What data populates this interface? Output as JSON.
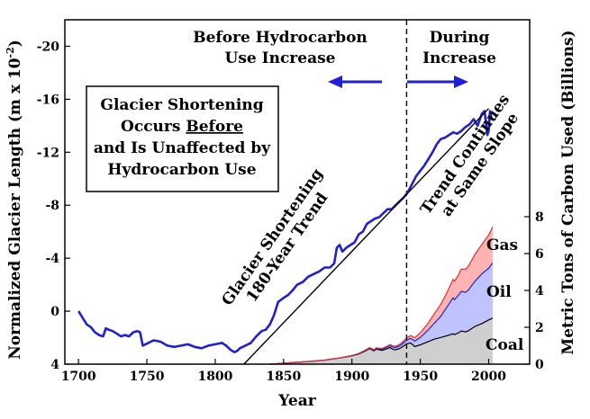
{
  "chart_data": {
    "type": "line",
    "xlabel": "Year",
    "ylabel": "Normalized Glacier Length (m x 10",
    "ylabel_sup": "-2",
    "ylabel_close": ")",
    "y2label": "Metric Tons of Carbon Used (Billions)",
    "xlim": [
      1690,
      2030
    ],
    "ylim": [
      4,
      -22
    ],
    "y2lim": [
      0,
      8
    ],
    "x_ticks": [
      1700,
      1750,
      1800,
      1850,
      1900,
      1950,
      2000
    ],
    "y_ticks": [
      4,
      0,
      -4,
      -8,
      -12,
      -16,
      -20
    ],
    "y2_ticks": [
      0,
      2,
      4,
      6,
      8
    ],
    "divider_year": 1940,
    "series": [
      {
        "name": "",
        "color": "#1f1fd6",
        "x": [
          1700,
          1703,
          1706,
          1709,
          1712,
          1715,
          1718,
          1720,
          1722,
          1725,
          1728,
          1731,
          1734,
          1737,
          1740,
          1743,
          1745,
          1747,
          1749,
          1751,
          1755,
          1760,
          1765,
          1770,
          1775,
          1780,
          1785,
          1790,
          1795,
          1800,
          1805,
          1808,
          1811,
          1814,
          1816,
          1818,
          1822,
          1826,
          1830,
          1834,
          1837,
          1840,
          1843,
          1846,
          1850,
          1853,
          1856,
          1860,
          1864,
          1868,
          1872,
          1876,
          1880,
          1884,
          1887,
          1889,
          1891,
          1893,
          1896,
          1899,
          1902,
          1905,
          1908,
          1911,
          1914,
          1917,
          1920,
          1923,
          1926,
          1929,
          1932,
          1935,
          1938,
          1941,
          1944,
          1947,
          1950,
          1953,
          1956,
          1959,
          1962,
          1965,
          1968,
          1971,
          1974,
          1977,
          1980,
          1983,
          1986,
          1989,
          1992,
          1995,
          1997,
          1998,
          1999,
          2000,
          2001,
          2002
        ],
        "y": [
          0.0,
          0.5,
          1.0,
          1.2,
          1.6,
          1.8,
          1.9,
          1.3,
          1.4,
          1.5,
          1.7,
          1.9,
          1.8,
          1.9,
          1.6,
          1.5,
          1.6,
          2.6,
          2.5,
          2.4,
          2.2,
          2.3,
          2.6,
          2.7,
          2.6,
          2.5,
          2.7,
          2.8,
          2.6,
          2.5,
          2.4,
          2.6,
          2.9,
          3.1,
          3.0,
          2.8,
          2.6,
          2.4,
          1.9,
          1.5,
          1.4,
          1.0,
          0.3,
          -0.7,
          -1.0,
          -1.2,
          -1.5,
          -2.0,
          -2.2,
          -2.6,
          -2.8,
          -3.0,
          -3.3,
          -3.3,
          -3.6,
          -4.8,
          -5.0,
          -4.5,
          -4.8,
          -5.0,
          -5.2,
          -5.8,
          -6.0,
          -6.6,
          -6.8,
          -7.0,
          -7.1,
          -7.4,
          -7.7,
          -7.7,
          -8.0,
          -8.3,
          -8.6,
          -9.0,
          -9.6,
          -10.2,
          -10.6,
          -11.0,
          -11.5,
          -12.0,
          -12.6,
          -13.0,
          -13.1,
          -13.3,
          -13.5,
          -13.4,
          -13.6,
          -13.9,
          -14.1,
          -14.5,
          -14.0,
          -14.9,
          -15.1,
          -14.3,
          -13.3,
          -13.6,
          -15.1,
          -14.6
        ]
      },
      {
        "name": "",
        "color": "#000000",
        "x": [
          1821,
          2000
        ],
        "y": [
          4.0,
          -15.3
        ]
      }
    ],
    "stacked_area_y2": {
      "x": [
        1840,
        1850,
        1860,
        1870,
        1880,
        1890,
        1900,
        1905,
        1910,
        1913,
        1916,
        1918,
        1920,
        1922,
        1925,
        1928,
        1930,
        1932,
        1935,
        1938,
        1940,
        1943,
        1946,
        1950,
        1955,
        1960,
        1965,
        1970,
        1974,
        1975,
        1978,
        1980,
        1983,
        1985,
        1990,
        1995,
        2000,
        2003
      ],
      "layers": [
        {
          "name": "Coal",
          "color": "#cfcfcf",
          "line": "#000000",
          "values": [
            0.0,
            0.05,
            0.1,
            0.15,
            0.22,
            0.32,
            0.45,
            0.55,
            0.72,
            0.85,
            0.72,
            0.82,
            0.78,
            0.75,
            0.82,
            0.9,
            0.8,
            0.78,
            0.85,
            1.0,
            1.1,
            1.15,
            0.95,
            1.05,
            1.2,
            1.35,
            1.45,
            1.55,
            1.65,
            1.6,
            1.7,
            1.8,
            1.75,
            1.8,
            2.05,
            2.2,
            2.4,
            2.5
          ]
        },
        {
          "name": "Oil",
          "color": "#bfc3ff",
          "line": "#2525cc",
          "values": [
            0.0,
            0.05,
            0.1,
            0.15,
            0.22,
            0.32,
            0.46,
            0.57,
            0.75,
            0.88,
            0.76,
            0.86,
            0.83,
            0.81,
            0.9,
            1.0,
            0.92,
            0.9,
            0.99,
            1.17,
            1.3,
            1.4,
            1.25,
            1.45,
            1.8,
            2.2,
            2.6,
            3.15,
            3.6,
            3.5,
            3.75,
            3.95,
            3.9,
            4.0,
            4.5,
            4.9,
            5.2,
            5.5
          ]
        },
        {
          "name": "Gas",
          "color": "#ffb3b3",
          "line": "#e03030",
          "values": [
            0.0,
            0.05,
            0.1,
            0.15,
            0.22,
            0.32,
            0.47,
            0.58,
            0.77,
            0.9,
            0.79,
            0.89,
            0.86,
            0.85,
            0.95,
            1.06,
            0.99,
            0.97,
            1.07,
            1.27,
            1.42,
            1.55,
            1.43,
            1.7,
            2.15,
            2.7,
            3.25,
            3.95,
            4.6,
            4.5,
            4.85,
            5.15,
            5.15,
            5.3,
            5.95,
            6.5,
            7.0,
            7.45
          ]
        }
      ]
    },
    "annotations": {
      "before_line1": "Before Hydrocarbon",
      "before_line2": "Use Increase",
      "during_line1": "During",
      "during_line2": "Increase",
      "box_line1": "Glacier Shortening",
      "box_line2_pre": "Occurs ",
      "box_line2_u": "Before",
      "box_line3": "and Is Unaffected by",
      "box_line4": "Hydrocarbon Use",
      "trend_line1": "Glacier Shortening",
      "trend_line2": "180-Year Trend",
      "cont_line1": "Trend Continues",
      "cont_line2": "at Same Slope",
      "gas": "Gas",
      "oil": "Oil",
      "coal": "Coal"
    }
  }
}
